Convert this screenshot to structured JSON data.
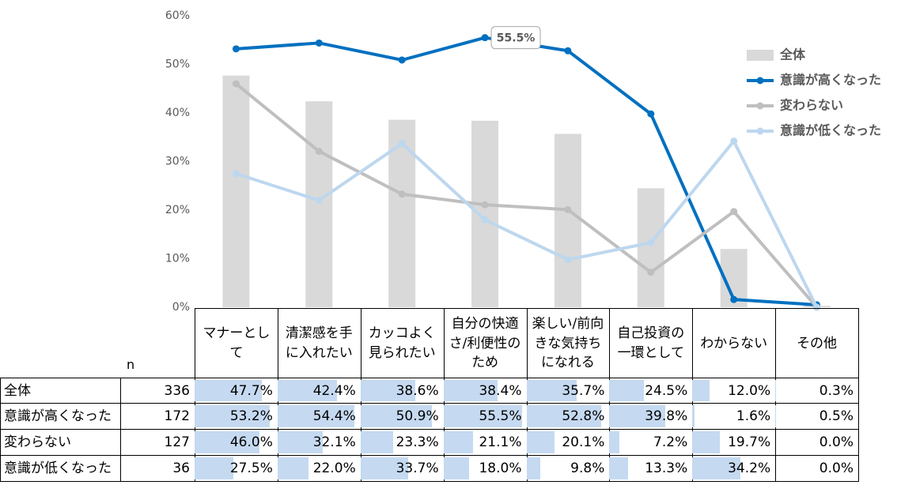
{
  "chart_data": {
    "type": "combo",
    "categories": [
      "マナーとして",
      "清潔感を手に入れたい",
      "カッコよく見られたい",
      "自分の快適さ/利便性のため",
      "楽しい/前向きな気持ちになれる",
      "自己投資の一環として",
      "わからない",
      "その他"
    ],
    "series": [
      {
        "name": "全体",
        "type": "bar",
        "color": "#d9d9d9",
        "values": [
          47.7,
          42.4,
          38.6,
          38.4,
          35.7,
          24.5,
          12.0,
          0.3
        ],
        "value_labels": [
          "47.7%",
          "42.4%",
          "38.6%",
          "38.4%",
          "35.7%",
          "24.5%",
          "12.0%",
          "0.3%"
        ]
      },
      {
        "name": "意識が高くなった",
        "type": "line",
        "color": "#0070c0",
        "values": [
          53.2,
          54.4,
          50.9,
          55.5,
          52.8,
          39.8,
          1.6,
          0.5
        ],
        "value_labels": [
          "53.2%",
          "54.4%",
          "50.9%",
          "55.5%",
          "52.8%",
          "39.8%",
          "1.6%",
          "0.5%"
        ]
      },
      {
        "name": "変わらない",
        "type": "line",
        "color": "#bfbfbf",
        "values": [
          46.0,
          32.1,
          23.3,
          21.1,
          20.1,
          7.2,
          19.7,
          0.0
        ],
        "value_labels": [
          "46.0%",
          "32.1%",
          "23.3%",
          "21.1%",
          "20.1%",
          "7.2%",
          "19.7%",
          "0.0%"
        ]
      },
      {
        "name": "意識が低くなった",
        "type": "line",
        "color": "#bdd7ee",
        "values": [
          27.5,
          22.0,
          33.7,
          18.0,
          9.8,
          13.3,
          34.2,
          0.0
        ],
        "value_labels": [
          "27.5%",
          "22.0%",
          "33.7%",
          "18.0%",
          "9.8%",
          "13.3%",
          "34.2%",
          "0.0%"
        ]
      }
    ],
    "sample_size_label": "n",
    "sample_sizes": [
      336,
      172,
      127,
      36
    ],
    "highlight": {
      "series": 1,
      "index": 3
    },
    "ylim": [
      0,
      60
    ],
    "yticks": [
      {
        "value": 0,
        "label": "0%"
      },
      {
        "value": 10,
        "label": "10%"
      },
      {
        "value": 20,
        "label": "20%"
      },
      {
        "value": 30,
        "label": "30%"
      },
      {
        "value": 40,
        "label": "40%"
      },
      {
        "value": 50,
        "label": "50%"
      },
      {
        "value": 60,
        "label": "60%"
      }
    ],
    "grid": false,
    "legend_position": "right",
    "table_bar_color": "#c5d9f1"
  }
}
